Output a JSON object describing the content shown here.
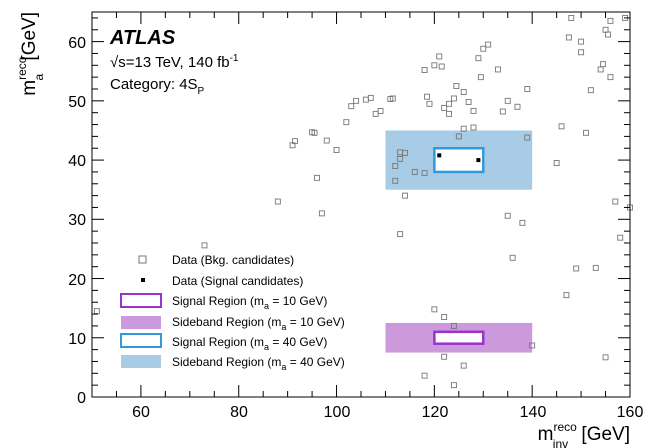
{
  "colors": {
    "signal_10": "#9933cc",
    "sideband_10": "#cc99dd",
    "signal_40": "#3399dd",
    "sideband_40": "#a8cce6",
    "data_bkg": "#777777",
    "data_sig": "#000000"
  },
  "annotations": {
    "atlas": "ATLAS",
    "energy_sqrt": "√s",
    "energy_rest": "=13 TeV, 140 fb",
    "energy_sup": "-1",
    "category_main": "Category: 4S",
    "category_sub": "P"
  },
  "chart_data": {
    "type": "scatter",
    "xlabel_main": "m",
    "xlabel_sup": "reco",
    "xlabel_sub": "inv",
    "xlabel_unit": " [GeV]",
    "ylabel_main": "m",
    "ylabel_sup": "reco",
    "ylabel_sub": "a",
    "ylabel_unit": " [GeV]",
    "xlim": [
      50,
      160
    ],
    "ylim": [
      0,
      65
    ],
    "xticks": [
      "60",
      "80",
      "100",
      "120",
      "140",
      "160"
    ],
    "yticks": [
      "0",
      "10",
      "20",
      "30",
      "40",
      "50",
      "60"
    ],
    "legend_position": "bottom-left",
    "legend": [
      {
        "label_main": "Data (Bkg. candidates)",
        "label_sub": "",
        "label_tail": ""
      },
      {
        "label_main": "Data (Signal candidates)",
        "label_sub": "",
        "label_tail": ""
      },
      {
        "label_main": "Signal Region (m",
        "label_sub": "a",
        "label_tail": " = 10 GeV)"
      },
      {
        "label_main": "Sideband Region (m",
        "label_sub": "a",
        "label_tail": " = 10 GeV)"
      },
      {
        "label_main": "Signal Region (m",
        "label_sub": "a",
        "label_tail": " = 40 GeV)"
      },
      {
        "label_main": "Sideband Region (m",
        "label_sub": "a",
        "label_tail": " = 40 GeV)"
      }
    ],
    "regions": [
      {
        "name": "sideband_10",
        "x": [
          110,
          140
        ],
        "y": [
          7.5,
          12.5
        ]
      },
      {
        "name": "signal_10",
        "x": [
          120,
          130
        ],
        "y": [
          9,
          11
        ]
      },
      {
        "name": "sideband_40",
        "x": [
          110,
          140
        ],
        "y": [
          35,
          45
        ]
      },
      {
        "name": "signal_40",
        "x": [
          120,
          130
        ],
        "y": [
          38,
          42
        ]
      }
    ],
    "series": [
      {
        "name": "Data (Bkg. candidates)",
        "x": [
          51,
          73,
          88,
          91,
          91.5,
          95,
          95.5,
          96,
          97,
          98,
          100,
          102,
          103,
          104,
          106,
          107,
          108,
          109,
          111,
          111.5,
          112,
          113,
          114,
          118,
          118.5,
          119,
          120,
          121,
          121.5,
          122,
          123,
          124,
          124.5,
          125,
          126,
          127,
          128,
          129,
          129.5,
          130,
          131,
          133,
          134,
          135,
          136,
          137,
          138,
          139,
          140,
          145,
          146,
          147,
          147.5,
          148,
          149,
          150,
          151,
          152,
          154,
          154.5,
          155,
          155.5,
          156,
          157,
          158,
          159,
          160,
          120,
          122,
          124,
          118,
          122,
          126,
          124,
          139,
          135,
          156,
          153,
          113,
          112,
          114,
          116,
          113,
          118,
          126,
          128,
          123,
          150,
          155
        ],
        "y": [
          14.5,
          25.6,
          33,
          42.5,
          43.2,
          44.7,
          44.6,
          37,
          31,
          43.3,
          41.7,
          46.4,
          49.1,
          50,
          50.2,
          50.5,
          47.8,
          48.3,
          50.3,
          50.4,
          39,
          41.3,
          41.2,
          55.2,
          50.7,
          49.5,
          56,
          57.5,
          55.8,
          48.8,
          47.8,
          50.4,
          52.5,
          44,
          51.5,
          49.8,
          48.3,
          57.2,
          54,
          58.8,
          59.5,
          55.3,
          48.2,
          30.6,
          23.5,
          49,
          29.4,
          43.8,
          8.7,
          39.5,
          45.7,
          17.2,
          60.7,
          64,
          21.7,
          58.2,
          44.6,
          51.8,
          55.3,
          56.2,
          6.7,
          61.2,
          63.5,
          33,
          26.9,
          64,
          32,
          14.8,
          13.5,
          2,
          3.6,
          6.8,
          5.3,
          12,
          52,
          50,
          54,
          21.8,
          27.5,
          36.5,
          34,
          38,
          40.2,
          37.8,
          45.3,
          45.5,
          49.5,
          60,
          62
        ]
      },
      {
        "name": "Data (Signal candidates)",
        "x": [
          121,
          129
        ],
        "y": [
          40.8,
          40
        ]
      }
    ]
  }
}
